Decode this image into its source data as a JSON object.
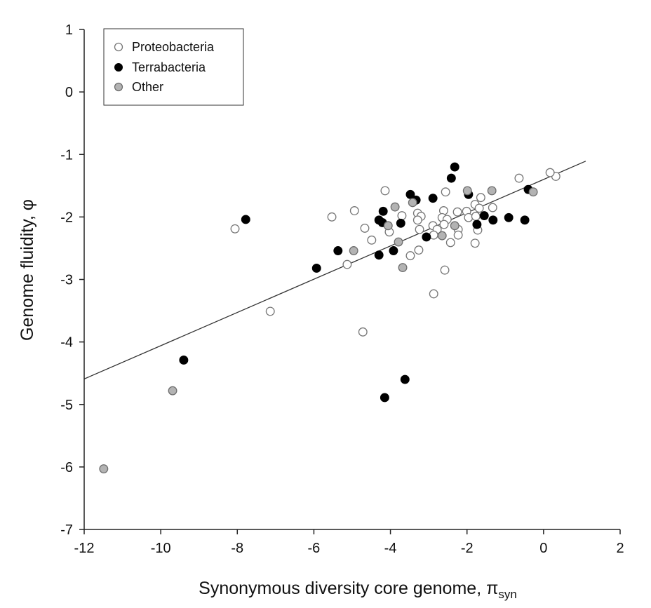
{
  "chart_data": {
    "type": "scatter",
    "title": "",
    "xlabel": "Synonymous diversity core genome, ",
    "xlabel_symbol": "π",
    "xlabel_subscript": "syn",
    "ylabel": "Genome fluidity, φ",
    "xlim": [
      -12,
      2
    ],
    "ylim": [
      -7,
      1
    ],
    "xticks": [
      "-12",
      "-10",
      "-8",
      "-6",
      "-4",
      "-2",
      "0",
      "2"
    ],
    "yticks": [
      "1",
      "0",
      "-1",
      "-2",
      "-3",
      "-4",
      "-5",
      "-6",
      "-7"
    ],
    "grid": false,
    "legend_position": "top-left",
    "regression_line": {
      "slope": 0.266,
      "intercept": -1.4,
      "x_range": [
        -12,
        1.1
      ],
      "color": "#333333"
    },
    "series": [
      {
        "name": "Proteobacteria",
        "marker": "open-circle",
        "fill": "#ffffff",
        "stroke": "#777777",
        "points": [
          [
            -8.06,
            -2.19
          ],
          [
            -7.14,
            -3.51
          ],
          [
            -4.72,
            -3.84
          ],
          [
            0.32,
            -1.35
          ],
          [
            0.17,
            -1.29
          ],
          [
            -0.64,
            -1.38
          ],
          [
            -4.14,
            -1.58
          ],
          [
            -2.56,
            -1.6
          ],
          [
            -1.64,
            -1.69
          ],
          [
            -4.94,
            -1.9
          ],
          [
            -5.53,
            -2.0
          ],
          [
            -1.79,
            -1.8
          ],
          [
            -1.33,
            -1.85
          ],
          [
            -1.68,
            -1.86
          ],
          [
            -2.61,
            -1.9
          ],
          [
            -2.25,
            -1.92
          ],
          [
            -2.01,
            -1.91
          ],
          [
            -3.29,
            -1.94
          ],
          [
            -3.2,
            -1.99
          ],
          [
            -3.7,
            -1.98
          ],
          [
            -3.29,
            -2.05
          ],
          [
            -2.65,
            -2.01
          ],
          [
            -2.52,
            -2.04
          ],
          [
            -1.96,
            -2.01
          ],
          [
            -1.77,
            -1.99
          ],
          [
            -4.67,
            -2.18
          ],
          [
            -4.03,
            -2.24
          ],
          [
            -3.24,
            -2.2
          ],
          [
            -2.89,
            -2.14
          ],
          [
            -2.78,
            -2.2
          ],
          [
            -2.6,
            -2.12
          ],
          [
            -2.23,
            -2.2
          ],
          [
            -2.23,
            -2.29
          ],
          [
            -1.72,
            -2.21
          ],
          [
            -2.87,
            -2.29
          ],
          [
            -4.49,
            -2.37
          ],
          [
            -2.43,
            -2.41
          ],
          [
            -1.79,
            -2.42
          ],
          [
            -3.26,
            -2.53
          ],
          [
            -3.48,
            -2.62
          ],
          [
            -5.13,
            -2.76
          ],
          [
            -2.58,
            -2.85
          ],
          [
            -2.87,
            -3.23
          ]
        ]
      },
      {
        "name": "Terrabacteria",
        "marker": "filled-circle",
        "fill": "#000000",
        "stroke": "#000000",
        "points": [
          [
            -2.32,
            -1.2
          ],
          [
            -2.41,
            -1.38
          ],
          [
            -3.48,
            -1.64
          ],
          [
            -3.33,
            -1.73
          ],
          [
            -2.89,
            -1.7
          ],
          [
            -1.96,
            -1.64
          ],
          [
            -0.4,
            -1.56
          ],
          [
            -4.19,
            -1.91
          ],
          [
            -4.3,
            -2.05
          ],
          [
            -4.21,
            -2.09
          ],
          [
            -3.73,
            -2.1
          ],
          [
            -1.55,
            -1.98
          ],
          [
            -1.74,
            -2.12
          ],
          [
            -1.32,
            -2.05
          ],
          [
            -0.91,
            -2.01
          ],
          [
            -0.49,
            -2.05
          ],
          [
            -3.06,
            -2.32
          ],
          [
            -5.37,
            -2.54
          ],
          [
            -4.3,
            -2.61
          ],
          [
            -3.92,
            -2.54
          ],
          [
            -5.93,
            -2.82
          ],
          [
            -7.78,
            -2.04
          ],
          [
            -9.4,
            -4.29
          ],
          [
            -4.15,
            -4.89
          ],
          [
            -3.62,
            -4.6
          ]
        ]
      },
      {
        "name": "Other",
        "marker": "gray-circle",
        "fill": "#b3b3b3",
        "stroke": "#6e6e6e",
        "points": [
          [
            -1.99,
            -1.58
          ],
          [
            -1.35,
            -1.58
          ],
          [
            -0.27,
            -1.6
          ],
          [
            -3.88,
            -1.84
          ],
          [
            -3.42,
            -1.77
          ],
          [
            -4.06,
            -2.14
          ],
          [
            -2.32,
            -2.14
          ],
          [
            -2.65,
            -2.3
          ],
          [
            -3.79,
            -2.4
          ],
          [
            -4.96,
            -2.54
          ],
          [
            -3.68,
            -2.81
          ],
          [
            -9.69,
            -4.78
          ],
          [
            -11.49,
            -6.03
          ]
        ]
      }
    ]
  }
}
